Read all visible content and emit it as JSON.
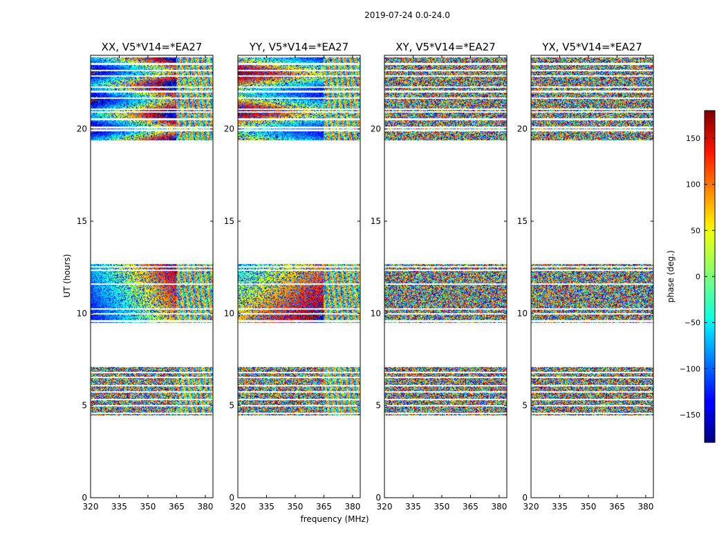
{
  "figure_title": "2019-07-24 0.0-24.0",
  "chart_data": {
    "type": "heatmap",
    "title": "2019-07-24 0.0-24.0",
    "xlabel": "frequency (MHz)",
    "ylabel": "UT (hours)",
    "xlim": [
      320,
      384
    ],
    "ylim": [
      0,
      24
    ],
    "x_ticks": [
      320,
      335,
      350,
      365,
      380
    ],
    "y_ticks": [
      0,
      5,
      10,
      15,
      20
    ],
    "data_time_ranges_hours": [
      [
        4.5,
        7.1
      ],
      [
        9.5,
        12.7
      ],
      [
        19.4,
        23.9
      ]
    ],
    "panels": [
      {
        "title": "XX, V5*V14=*EA27",
        "corr": "XX"
      },
      {
        "title": "YY, V5*V14=*EA27",
        "corr": "YY"
      },
      {
        "title": "XY, V5*V14=*EA27",
        "corr": "XY"
      },
      {
        "title": "YX, V5*V14=*EA27",
        "corr": "YX"
      }
    ],
    "colorbar": {
      "label": "phase (deg.)",
      "range": [
        -180,
        180
      ],
      "ticks": [
        -150,
        -100,
        -50,
        0,
        50,
        100,
        150
      ],
      "colormap": "jet"
    }
  }
}
